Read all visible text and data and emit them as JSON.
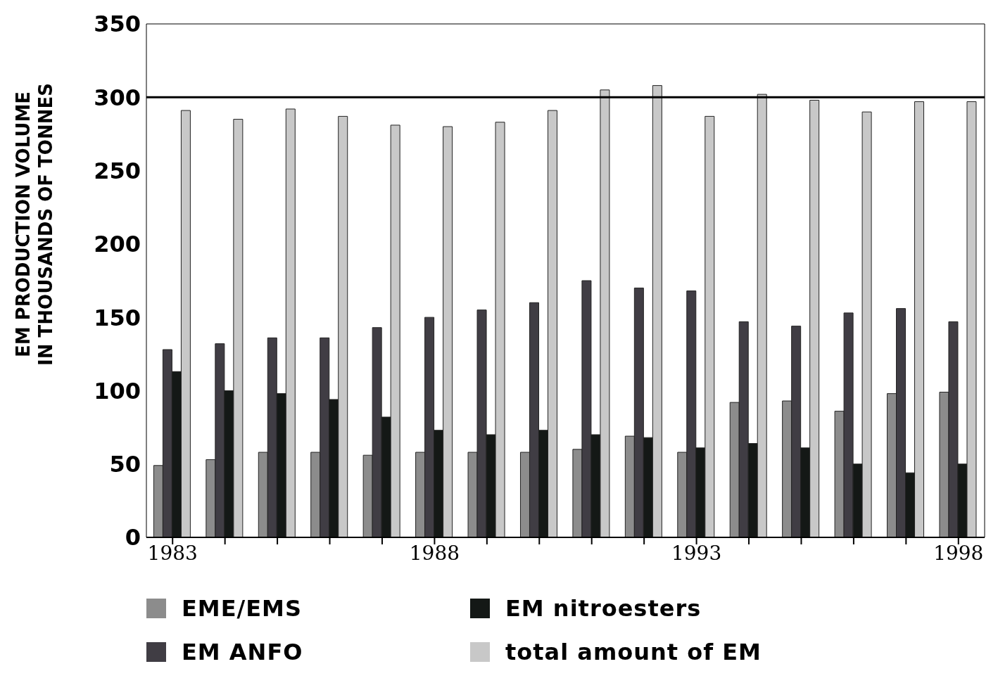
{
  "chart_data": {
    "type": "bar",
    "ylabel": "EM PRODUCTION VOLUME\nIN THOUSANDS OF TONNES",
    "categories": [
      "1983",
      null,
      null,
      null,
      null,
      "1988",
      null,
      null,
      null,
      null,
      "1993",
      null,
      null,
      null,
      null,
      "1998"
    ],
    "series": [
      {
        "name": "EME/EMS",
        "color": "#8c8c8c",
        "values": [
          49,
          53,
          58,
          58,
          56,
          58,
          58,
          58,
          60,
          69,
          58,
          92,
          93,
          86,
          98,
          99
        ]
      },
      {
        "name": "EM ANFO",
        "color": "#403d44",
        "values": [
          128,
          132,
          136,
          136,
          143,
          150,
          155,
          160,
          175,
          170,
          168,
          147,
          144,
          153,
          156,
          147
        ]
      },
      {
        "name": "EM nitroesters",
        "color": "#141816",
        "values": [
          113,
          100,
          98,
          94,
          82,
          73,
          70,
          73,
          70,
          68,
          61,
          64,
          61,
          50,
          44,
          50
        ]
      },
      {
        "name": "total amount of EM",
        "color": "#c8c8c8",
        "values": [
          291,
          285,
          292,
          287,
          281,
          280,
          283,
          291,
          305,
          308,
          287,
          302,
          298,
          290,
          297,
          297
        ]
      }
    ],
    "ylim": [
      0,
      350
    ],
    "yticks": [
      0,
      50,
      100,
      150,
      200,
      250,
      300,
      350
    ],
    "ref_lines": [
      {
        "axis": "y",
        "value": 300,
        "label": null,
        "color": "#000000"
      }
    ],
    "legend": "bottom"
  }
}
